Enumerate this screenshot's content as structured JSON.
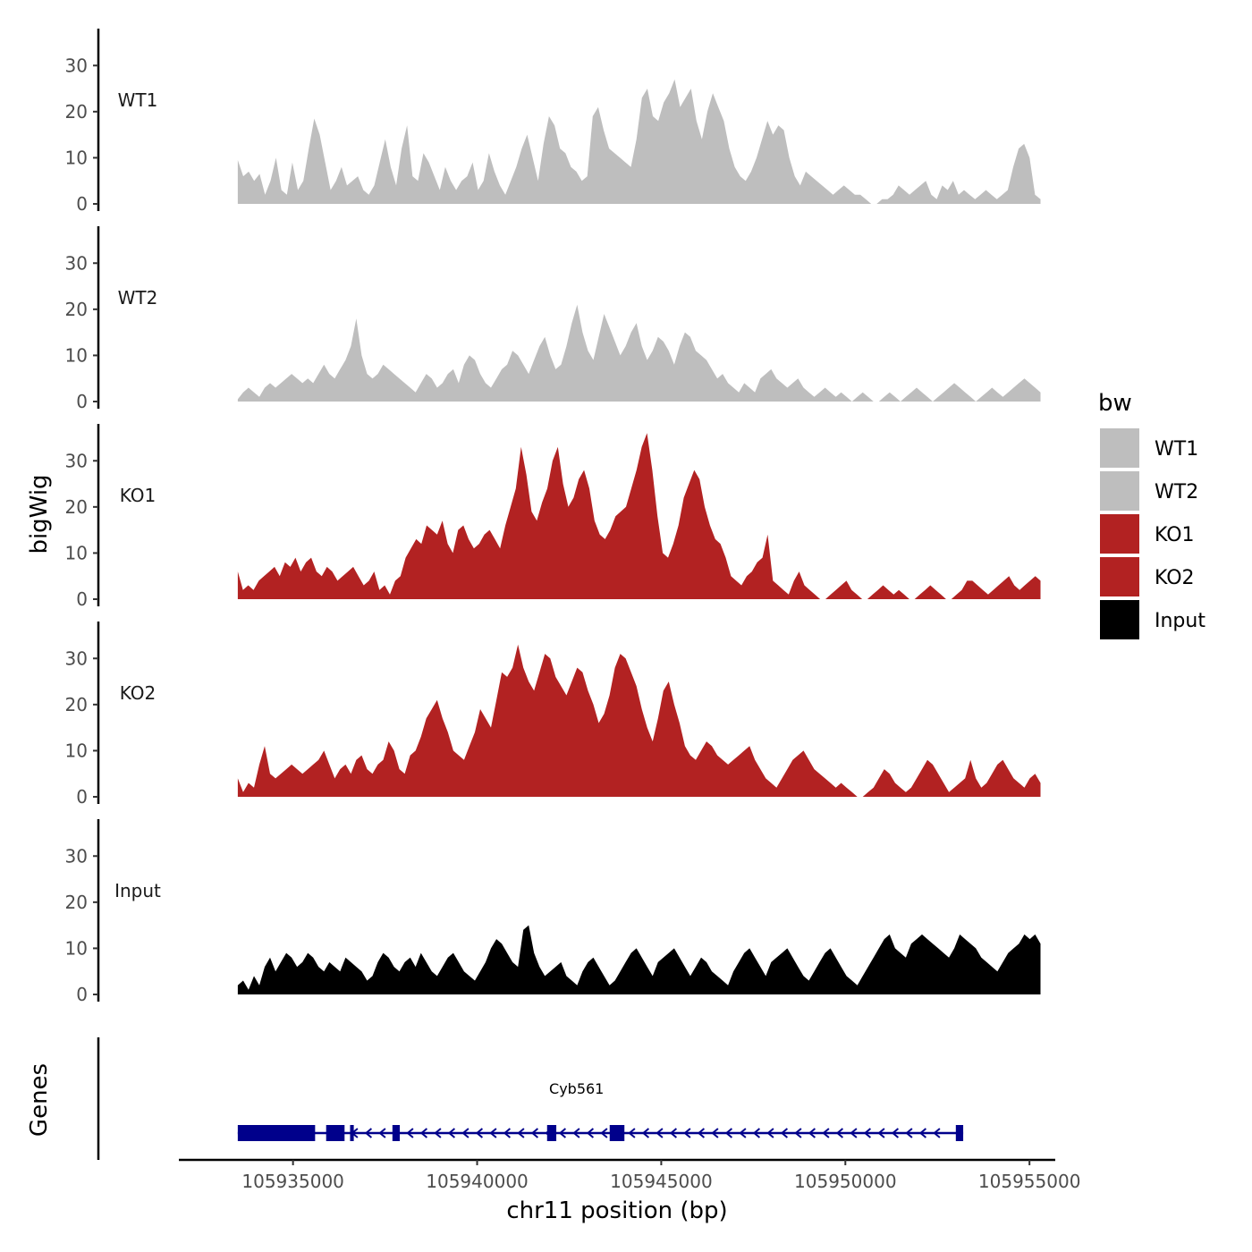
{
  "chart_data": {
    "type": "area",
    "title": "",
    "ylabel": "bigWig",
    "xlabel": "chr11 position (bp)",
    "x_range": [
      105933500,
      105955300
    ],
    "x_axis_range": [
      105931900,
      105955700
    ],
    "xticks": [
      105935000,
      105940000,
      105945000,
      105950000,
      105955000
    ],
    "xtick_labels": [
      "105935000",
      "105940000",
      "105945000",
      "105950000",
      "105955000"
    ],
    "ylim": [
      0,
      38
    ],
    "yticks": [
      0,
      10,
      20,
      30
    ],
    "ytick_labels": [
      "0",
      "10",
      "20",
      "30"
    ],
    "series": [
      {
        "name": "WT1",
        "color": "#bebebe",
        "values": [
          9.5,
          6,
          7,
          5,
          6.5,
          2,
          5,
          10,
          3,
          2,
          9,
          3,
          5,
          12,
          18.5,
          15,
          9,
          3,
          5,
          8,
          4,
          5,
          6,
          3,
          2,
          4,
          9,
          14,
          8,
          4,
          12,
          17,
          6,
          5,
          11,
          9,
          6,
          3,
          8,
          5,
          3,
          5,
          6,
          9,
          3,
          5,
          11,
          7,
          4,
          2,
          5,
          8,
          12,
          15,
          10,
          5,
          13,
          19,
          17,
          12,
          11,
          8,
          7,
          5,
          6,
          19,
          21,
          16,
          12,
          11,
          10,
          9,
          8,
          14,
          23,
          25,
          19,
          18,
          22,
          24,
          27,
          21,
          23,
          25,
          18,
          14,
          20,
          24,
          21,
          18,
          12,
          8,
          6,
          5,
          7,
          10,
          14,
          18,
          15,
          17,
          16,
          10,
          6,
          4,
          7,
          6,
          5,
          4,
          3,
          2,
          3,
          4,
          3,
          2,
          2,
          1,
          0,
          0,
          1,
          1,
          2,
          4,
          3,
          2,
          3,
          4,
          5,
          2,
          1,
          4,
          3,
          5,
          2,
          3,
          2,
          1,
          2,
          3,
          2,
          1,
          2,
          3,
          8,
          12,
          13,
          10,
          2,
          1
        ]
      },
      {
        "name": "WT2",
        "color": "#bebebe",
        "values": [
          0.5,
          2,
          3,
          2,
          1,
          3,
          4,
          3,
          4,
          5,
          6,
          5,
          4,
          5,
          4,
          6,
          8,
          6,
          5,
          7,
          9,
          12,
          18,
          10,
          6,
          5,
          6,
          8,
          7,
          6,
          5,
          4,
          3,
          2,
          4,
          6,
          5,
          3,
          4,
          6,
          7,
          4,
          8,
          10,
          9,
          6,
          4,
          3,
          5,
          7,
          8,
          11,
          10,
          8,
          6,
          9,
          12,
          14,
          10,
          7,
          8,
          12,
          17,
          21,
          15,
          11,
          9,
          14,
          19,
          16,
          13,
          10,
          12,
          15,
          17,
          12,
          9,
          11,
          14,
          13,
          11,
          8,
          12,
          15,
          14,
          11,
          10,
          9,
          7,
          5,
          6,
          4,
          3,
          2,
          4,
          3,
          2,
          5,
          6,
          7,
          5,
          4,
          3,
          4,
          5,
          3,
          2,
          1,
          2,
          3,
          2,
          1,
          2,
          1,
          0,
          1,
          2,
          1,
          0,
          0,
          1,
          2,
          1,
          0,
          1,
          2,
          3,
          2,
          1,
          0,
          1,
          2,
          3,
          4,
          3,
          2,
          1,
          0,
          1,
          2,
          3,
          2,
          1,
          2,
          3,
          4,
          5,
          4,
          3,
          2
        ]
      },
      {
        "name": "KO1",
        "color": "#b22222",
        "values": [
          6,
          2,
          3,
          2,
          4,
          5,
          6,
          7,
          5,
          8,
          7,
          9,
          6,
          8,
          9,
          6,
          5,
          7,
          6,
          4,
          5,
          6,
          7,
          5,
          3,
          4,
          6,
          2,
          3,
          1,
          4,
          5,
          9,
          11,
          13,
          12,
          16,
          15,
          14,
          17,
          12,
          10,
          15,
          16,
          13,
          11,
          12,
          14,
          15,
          13,
          11,
          16,
          20,
          24,
          33,
          27,
          19,
          17,
          21,
          24,
          30,
          33,
          25,
          20,
          22,
          26,
          28,
          24,
          17,
          14,
          13,
          15,
          18,
          19,
          20,
          24,
          28,
          33,
          36,
          28,
          18,
          10,
          9,
          12,
          16,
          22,
          25,
          28,
          26,
          20,
          16,
          13,
          12,
          9,
          5,
          4,
          3,
          5,
          6,
          8,
          9,
          14,
          4,
          3,
          2,
          1,
          4,
          6,
          3,
          2,
          1,
          0,
          0,
          1,
          2,
          3,
          4,
          2,
          1,
          0,
          0,
          1,
          2,
          3,
          2,
          1,
          2,
          1,
          0,
          0,
          1,
          2,
          3,
          2,
          1,
          0,
          0,
          1,
          2,
          4,
          4,
          3,
          2,
          1,
          2,
          3,
          4,
          5,
          3,
          2,
          3,
          4,
          5,
          4
        ]
      },
      {
        "name": "KO2",
        "color": "#b22222",
        "values": [
          4,
          1,
          3,
          2,
          7,
          11,
          5,
          4,
          5,
          6,
          7,
          6,
          5,
          6,
          7,
          8,
          10,
          7,
          4,
          6,
          7,
          5,
          8,
          9,
          6,
          5,
          7,
          8,
          12,
          10,
          6,
          5,
          9,
          10,
          13,
          17,
          19,
          21,
          17,
          14,
          10,
          9,
          8,
          11,
          14,
          19,
          17,
          15,
          21,
          27,
          26,
          28,
          33,
          28,
          25,
          23,
          27,
          31,
          30,
          26,
          24,
          22,
          25,
          28,
          27,
          23,
          20,
          16,
          18,
          22,
          28,
          31,
          30,
          27,
          24,
          19,
          15,
          12,
          17,
          23,
          25,
          20,
          16,
          11,
          9,
          8,
          10,
          12,
          11,
          9,
          8,
          7,
          8,
          9,
          10,
          11,
          8,
          6,
          4,
          3,
          2,
          4,
          6,
          8,
          9,
          10,
          8,
          6,
          5,
          4,
          3,
          2,
          3,
          2,
          1,
          0,
          0,
          1,
          2,
          4,
          6,
          5,
          3,
          2,
          1,
          2,
          4,
          6,
          8,
          7,
          5,
          3,
          1,
          2,
          3,
          4,
          8,
          4,
          2,
          3,
          5,
          7,
          8,
          6,
          4,
          3,
          2,
          4,
          5,
          3
        ]
      },
      {
        "name": "Input",
        "color": "#000000",
        "values": [
          2,
          3,
          1,
          4,
          2,
          6,
          8,
          5,
          7,
          9,
          8,
          6,
          7,
          9,
          8,
          6,
          5,
          7,
          6,
          5,
          8,
          7,
          6,
          5,
          3,
          4,
          7,
          9,
          8,
          6,
          5,
          7,
          8,
          6,
          9,
          7,
          5,
          4,
          6,
          8,
          9,
          7,
          5,
          4,
          3,
          5,
          7,
          10,
          12,
          11,
          9,
          7,
          6,
          14,
          15,
          9,
          6,
          4,
          5,
          6,
          7,
          4,
          3,
          2,
          5,
          7,
          8,
          6,
          4,
          2,
          3,
          5,
          7,
          9,
          10,
          8,
          6,
          4,
          7,
          8,
          9,
          10,
          8,
          6,
          4,
          6,
          8,
          7,
          5,
          4,
          3,
          2,
          5,
          7,
          9,
          10,
          8,
          6,
          4,
          7,
          8,
          9,
          10,
          8,
          6,
          4,
          3,
          5,
          7,
          9,
          10,
          8,
          6,
          4,
          3,
          2,
          4,
          6,
          8,
          10,
          12,
          13,
          10,
          9,
          8,
          11,
          12,
          13,
          12,
          11,
          10,
          9,
          8,
          10,
          13,
          12,
          11,
          10,
          8,
          7,
          6,
          5,
          7,
          9,
          10,
          11,
          13,
          12,
          13,
          11
        ]
      }
    ],
    "genes_track": {
      "label": "Genes",
      "gene_name": "Cyb561",
      "gene_start": 105933500,
      "gene_end": 105953200,
      "strand": "-",
      "exons": [
        [
          105933500,
          105935600
        ],
        [
          105935900,
          105936400
        ],
        [
          105936550,
          105936650
        ],
        [
          105937700,
          105937900
        ],
        [
          105941900,
          105942150
        ],
        [
          105943600,
          105944000
        ],
        [
          105953000,
          105953200
        ]
      ],
      "color": "#00008b"
    },
    "legend": {
      "title": "bw",
      "position": "right",
      "entries": [
        {
          "label": "WT1",
          "color": "#bebebe"
        },
        {
          "label": "WT2",
          "color": "#bebebe"
        },
        {
          "label": "KO1",
          "color": "#b22222"
        },
        {
          "label": "KO2",
          "color": "#b22222"
        },
        {
          "label": "Input",
          "color": "#000000"
        }
      ]
    }
  }
}
